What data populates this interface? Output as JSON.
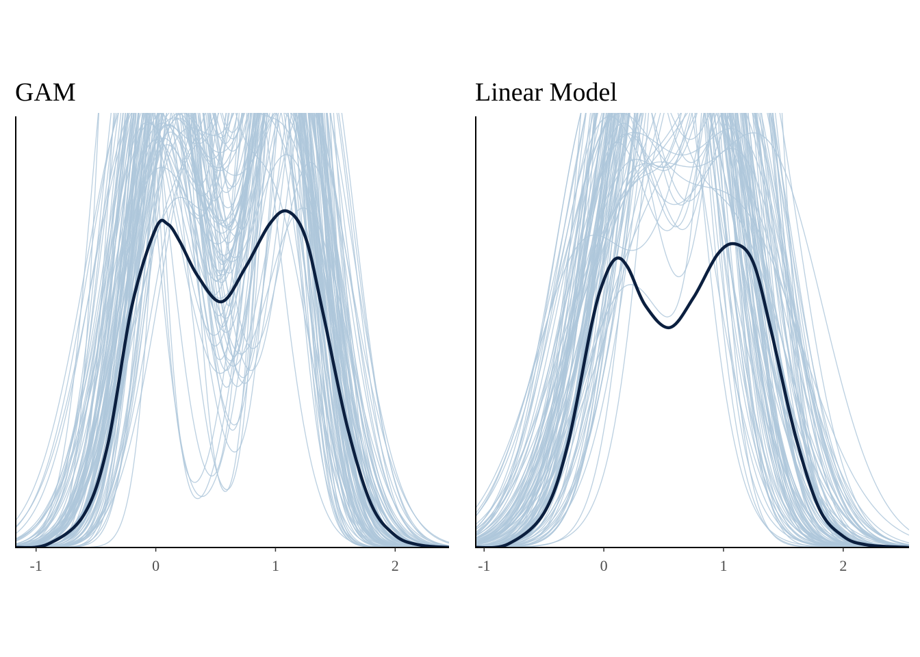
{
  "chart_data": [
    {
      "type": "line",
      "title": "GAM",
      "xlabel": "",
      "ylabel": "",
      "xlim": [
        -1.17,
        2.45
      ],
      "ylim": [
        0,
        0.5
      ],
      "x_ticks": [
        -1,
        0,
        1,
        2
      ],
      "x_tick_labels": [
        "-1",
        "0",
        "1",
        "2"
      ],
      "y_ticks_shown": false,
      "grid": false,
      "legend": "none",
      "observed": {
        "description_role": "observed density",
        "color": "#0b1f3f",
        "x": [
          -1.17,
          -0.9,
          -0.6,
          -0.4,
          -0.2,
          0.0,
          0.1,
          0.2,
          0.35,
          0.55,
          0.75,
          0.95,
          1.1,
          1.25,
          1.4,
          1.6,
          1.8,
          2.0,
          2.2,
          2.45
        ],
        "y": [
          0.0,
          0.004,
          0.038,
          0.12,
          0.28,
          0.37,
          0.375,
          0.355,
          0.315,
          0.285,
          0.325,
          0.375,
          0.39,
          0.36,
          0.27,
          0.14,
          0.05,
          0.014,
          0.003,
          0.0
        ]
      },
      "replicates": {
        "count": 100,
        "color": "#aec7da",
        "peak_range": [
          0.24,
          0.5
        ],
        "shape": "bimodal, modes near 0.1 and 1.1"
      }
    },
    {
      "type": "line",
      "title": "Linear Model",
      "xlabel": "",
      "ylabel": "",
      "xlim": [
        -1.07,
        2.55
      ],
      "ylim": [
        0,
        0.5
      ],
      "x_ticks": [
        -1,
        0,
        1,
        2
      ],
      "x_tick_labels": [
        "-1",
        "0",
        "1",
        "2"
      ],
      "y_ticks_shown": false,
      "grid": false,
      "legend": "none",
      "observed": {
        "description_role": "observed density",
        "color": "#0b1f3f",
        "x": [
          -1.07,
          -0.8,
          -0.5,
          -0.3,
          -0.1,
          0.0,
          0.1,
          0.2,
          0.35,
          0.55,
          0.75,
          0.95,
          1.1,
          1.25,
          1.4,
          1.6,
          1.8,
          2.0,
          2.2,
          2.55
        ],
        "y": [
          0.0,
          0.004,
          0.04,
          0.12,
          0.26,
          0.31,
          0.335,
          0.325,
          0.28,
          0.255,
          0.29,
          0.34,
          0.352,
          0.33,
          0.25,
          0.13,
          0.045,
          0.013,
          0.003,
          0.0
        ]
      },
      "replicates": {
        "count": 100,
        "color": "#aec7da",
        "peak_range": [
          0.22,
          0.5
        ],
        "shape": "unimodal, mode near 0.6"
      }
    }
  ]
}
